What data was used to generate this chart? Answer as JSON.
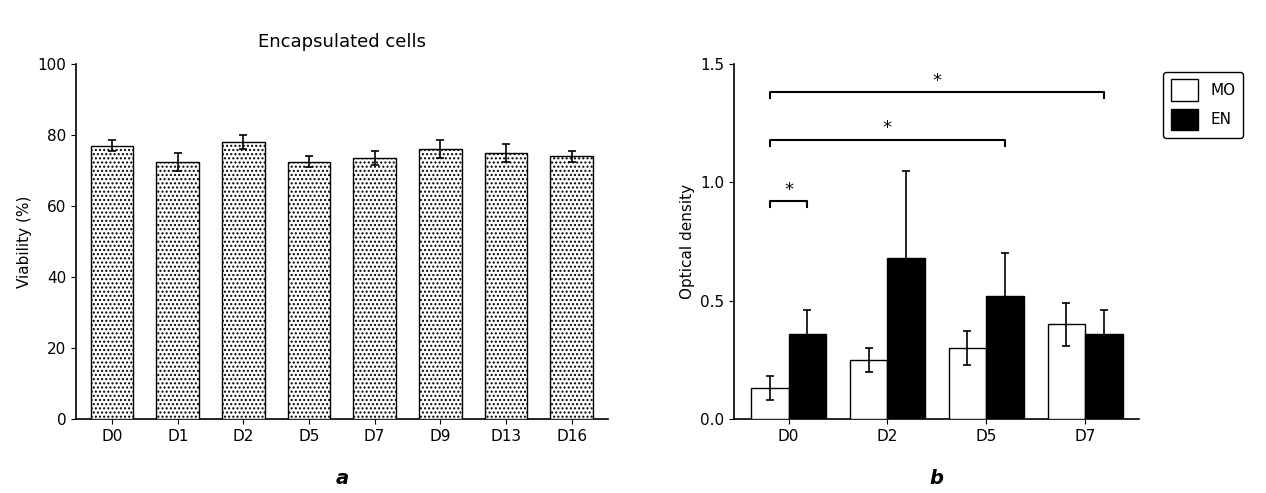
{
  "panel_a": {
    "title": "Encapsulated cells",
    "categories": [
      "D0",
      "D1",
      "D2",
      "D5",
      "D7",
      "D9",
      "D13",
      "D16"
    ],
    "values": [
      77.0,
      72.5,
      78.0,
      72.5,
      73.5,
      76.0,
      75.0,
      74.0
    ],
    "errors": [
      1.5,
      2.5,
      2.0,
      1.5,
      2.0,
      2.5,
      2.5,
      1.5
    ],
    "ylabel": "Viability (%)",
    "ylim": [
      0,
      100
    ],
    "yticks": [
      0,
      20,
      40,
      60,
      80,
      100
    ],
    "xlabel_label": "a",
    "bar_color": "#ffffff",
    "bar_hatch": "....",
    "bar_edgecolor": "#000000"
  },
  "panel_b": {
    "categories": [
      "D0",
      "D2",
      "D5",
      "D7"
    ],
    "mo_values": [
      0.13,
      0.25,
      0.3,
      0.4
    ],
    "mo_errors": [
      0.05,
      0.05,
      0.07,
      0.09
    ],
    "en_values": [
      0.36,
      0.68,
      0.52,
      0.36
    ],
    "en_errors": [
      0.1,
      0.37,
      0.18,
      0.1
    ],
    "ylabel": "Optical density",
    "ylim": [
      0,
      1.5
    ],
    "yticks": [
      0.0,
      0.5,
      1.0,
      1.5
    ],
    "xlabel_label": "b",
    "mo_color": "#ffffff",
    "en_color": "#000000",
    "bar_edgecolor": "#000000",
    "legend_labels": [
      "MO",
      "EN"
    ]
  },
  "background_color": "#ffffff",
  "font_size": 11,
  "title_font_size": 13
}
